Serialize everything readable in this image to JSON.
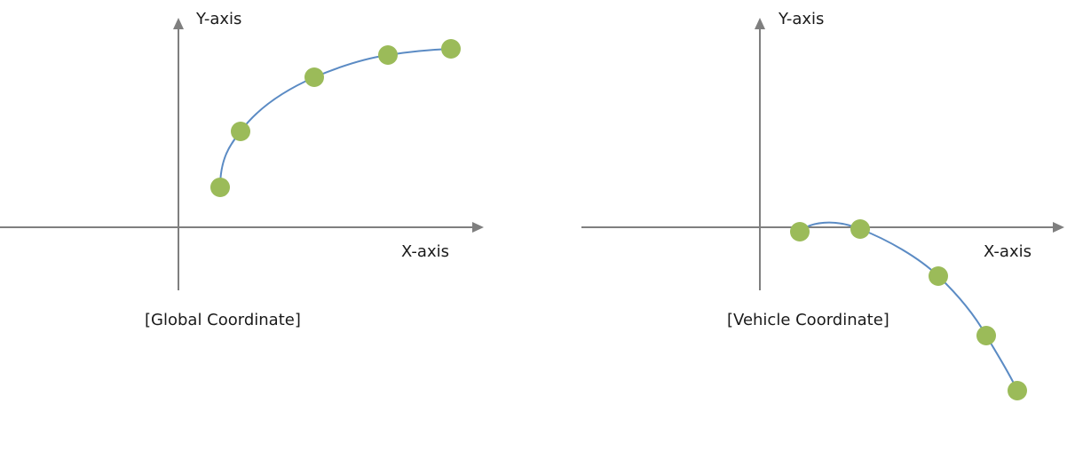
{
  "colors": {
    "axis": "#7f7f7f",
    "trajectory": "#5b8bc4",
    "waypoint": "#9bbb59",
    "text": "#1a1a1a"
  },
  "panels": [
    {
      "id": "global",
      "caption": "[Global Coordinate]",
      "y_axis_label": "Y-axis",
      "x_axis_label": "X-axis"
    },
    {
      "id": "vehicle",
      "caption": "[Vehicle Coordinate]",
      "y_axis_label": "Y-axis",
      "x_axis_label": "X-axis"
    }
  ]
}
